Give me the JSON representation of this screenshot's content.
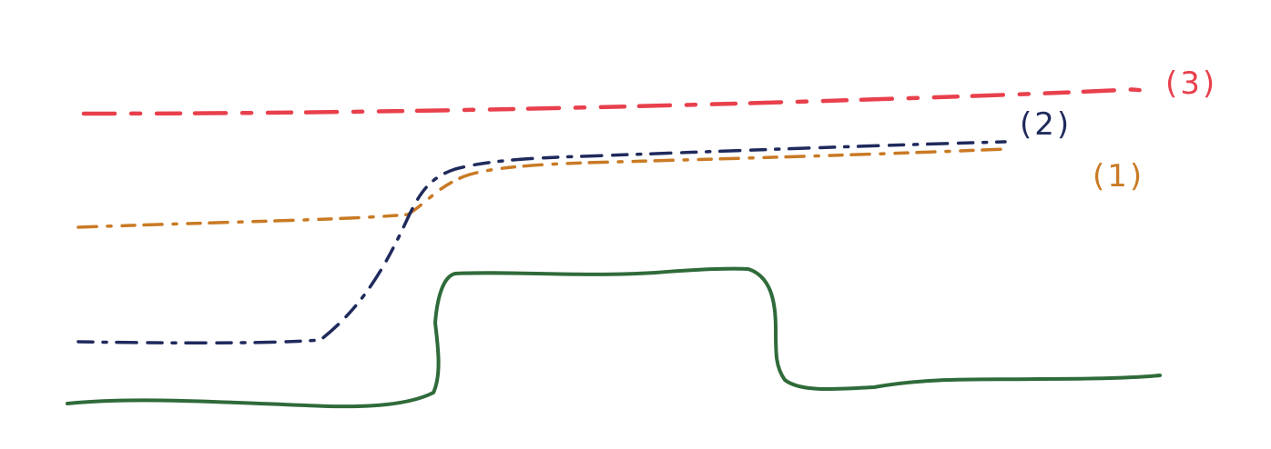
{
  "curves": [
    {
      "id": "curve-3",
      "label": "(3)",
      "color": "#e8404c",
      "style": "dash"
    },
    {
      "id": "curve-2",
      "label": "(2)",
      "color": "#1f2a5c",
      "style": "dash-dot"
    },
    {
      "id": "curve-1",
      "label": "(1)",
      "color": "#c97a24",
      "style": "dash-dot"
    },
    {
      "id": "step-signal",
      "label": "",
      "color": "#2f6b3a",
      "style": "solid"
    }
  ]
}
